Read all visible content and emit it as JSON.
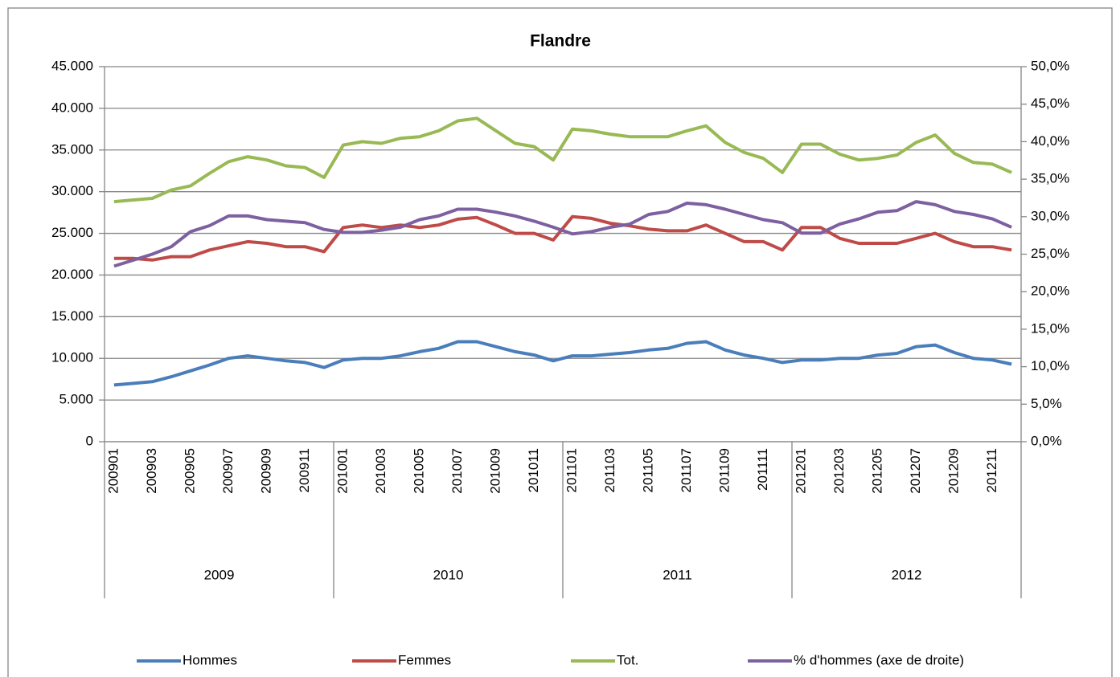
{
  "chart_data": {
    "type": "line",
    "title": "Flandre",
    "categories": [
      "200901",
      null,
      "200903",
      null,
      "200905",
      null,
      "200907",
      null,
      "200909",
      null,
      "200911",
      null,
      "201001",
      null,
      "201003",
      null,
      "201005",
      null,
      "201007",
      null,
      "201009",
      null,
      "201011",
      null,
      "201101",
      null,
      "201103",
      null,
      "201105",
      null,
      "201107",
      null,
      "201109",
      null,
      "201111",
      null,
      "201201",
      null,
      "201203",
      null,
      "201205",
      null,
      "201207",
      null,
      "201209",
      null,
      "201211",
      null
    ],
    "category_groups": [
      "2009",
      "2010",
      "2011",
      "2012"
    ],
    "series": [
      {
        "name": "Hommes",
        "color": "#4a7ebb",
        "values": [
          6800,
          7000,
          7200,
          7800,
          8500,
          9200,
          10000,
          10300,
          10000,
          9700,
          9500,
          8900,
          9800,
          10000,
          10000,
          10300,
          10800,
          11200,
          12000,
          12000,
          11400,
          10800,
          10400,
          9700,
          10300,
          10300,
          10500,
          10700,
          11000,
          11200,
          11800,
          12000,
          11000,
          10400,
          10000,
          9500,
          9800,
          9800,
          10000,
          10000,
          10400,
          10600,
          11400,
          11600,
          10700,
          10000,
          9800,
          9300
        ]
      },
      {
        "name": "Femmes",
        "color": "#be4b48",
        "values": [
          22000,
          22000,
          21800,
          22200,
          22200,
          23000,
          23500,
          24000,
          23800,
          23400,
          23400,
          22800,
          25700,
          26000,
          25700,
          26000,
          25700,
          26000,
          26700,
          26900,
          26000,
          25000,
          25000,
          24200,
          27000,
          26800,
          26200,
          25900,
          25500,
          25300,
          25300,
          26000,
          25000,
          24000,
          24000,
          23000,
          25700,
          25700,
          24400,
          23800,
          23800,
          23800,
          24400,
          25000,
          24000,
          23400,
          23400,
          23000
        ]
      },
      {
        "name": "Tot.",
        "color": "#98b954",
        "values": [
          28800,
          29000,
          29200,
          30200,
          30700,
          32200,
          33600,
          34200,
          33800,
          33100,
          32900,
          31700,
          35600,
          36000,
          35800,
          36400,
          36600,
          37300,
          38500,
          38800,
          37300,
          35800,
          35400,
          33800,
          37500,
          37300,
          36900,
          36600,
          36600,
          36600,
          37300,
          37900,
          35900,
          34700,
          34000,
          32300,
          35700,
          35700,
          34500,
          33800,
          34000,
          34400,
          35900,
          36800,
          34600,
          33500,
          33300,
          32300
        ]
      },
      {
        "name": "% d'hommes (axe de droite)",
        "color": "#7d60a0",
        "axis": "y2",
        "values": [
          23.4,
          24.2,
          25.0,
          26.0,
          28.0,
          28.8,
          30.1,
          30.1,
          29.6,
          29.4,
          29.2,
          28.3,
          27.9,
          27.9,
          28.2,
          28.6,
          29.6,
          30.1,
          31.0,
          31.0,
          30.6,
          30.1,
          29.4,
          28.6,
          27.7,
          28.0,
          28.6,
          29.0,
          30.3,
          30.7,
          31.8,
          31.6,
          31.0,
          30.3,
          29.6,
          29.2,
          27.8,
          27.8,
          29.0,
          29.7,
          30.6,
          30.8,
          32.0,
          31.6,
          30.7,
          30.3,
          29.7,
          28.6
        ]
      }
    ],
    "ylim": [
      0,
      45000
    ],
    "yticks": [
      0,
      {
        "value": 5000,
        "label": "5.000"
      },
      {
        "value": 10000,
        "label": "10.000"
      },
      {
        "value": 15000,
        "label": "15.000"
      },
      {
        "value": 20000,
        "label": "20.000"
      },
      {
        "value": 25000,
        "label": "25.000"
      },
      {
        "value": 30000,
        "label": "30.000"
      },
      {
        "value": 35000,
        "label": "35.000"
      },
      {
        "value": 40000,
        "label": "40.000"
      },
      {
        "value": 45000,
        "label": "45.000"
      }
    ],
    "y2lim": [
      0,
      50
    ],
    "y2ticks": [
      {
        "value": 0,
        "label": "0,0%"
      },
      {
        "value": 5,
        "label": "5,0%"
      },
      {
        "value": 10,
        "label": "10,0%"
      },
      {
        "value": 15,
        "label": "15,0%"
      },
      {
        "value": 20,
        "label": "20,0%"
      },
      {
        "value": 25,
        "label": "25,0%"
      },
      {
        "value": 30,
        "label": "30,0%"
      },
      {
        "value": 35,
        "label": "35,0%"
      },
      {
        "value": 40,
        "label": "40,0%"
      },
      {
        "value": 45,
        "label": "45,0%"
      },
      {
        "value": 50,
        "label": "50,0%"
      }
    ],
    "grid": true,
    "legend": "bottom"
  }
}
